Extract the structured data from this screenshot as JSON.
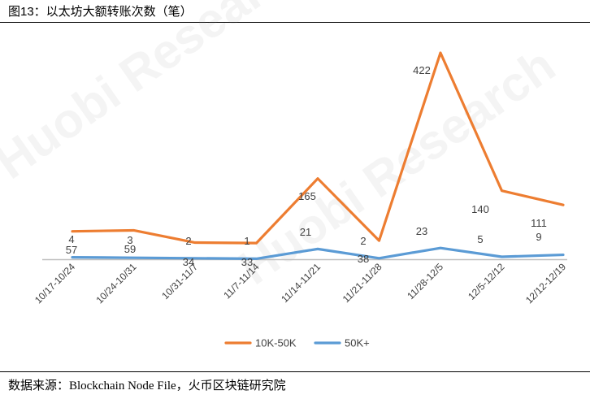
{
  "figure_title": "图13：以太坊大额转账次数（笔）",
  "source_note": "数据来源：Blockchain Node File，火币区块链研究院",
  "watermark_text": "Huobi Research",
  "chart_data": {
    "type": "line",
    "categories": [
      "10/17-10/24",
      "10/24-10/31",
      "10/31-11/7",
      "11/7-11/14",
      "11/14-11/21",
      "11/21-11/28",
      "11/28-12/5",
      "12/5-12/12",
      "12/12-12/19"
    ],
    "series": [
      {
        "name": "10K-50K",
        "color": "#ED7D31",
        "values": [
          57,
          59,
          34,
          33,
          165,
          38,
          422,
          140,
          111
        ]
      },
      {
        "name": "50K+",
        "color": "#5B9BD5",
        "values": [
          4,
          3,
          2,
          1,
          21,
          2,
          23,
          5,
          9
        ]
      }
    ],
    "ylim": [
      0,
      450
    ],
    "grid": false,
    "legend_position": "bottom",
    "title": "",
    "xlabel": "",
    "ylabel": ""
  }
}
